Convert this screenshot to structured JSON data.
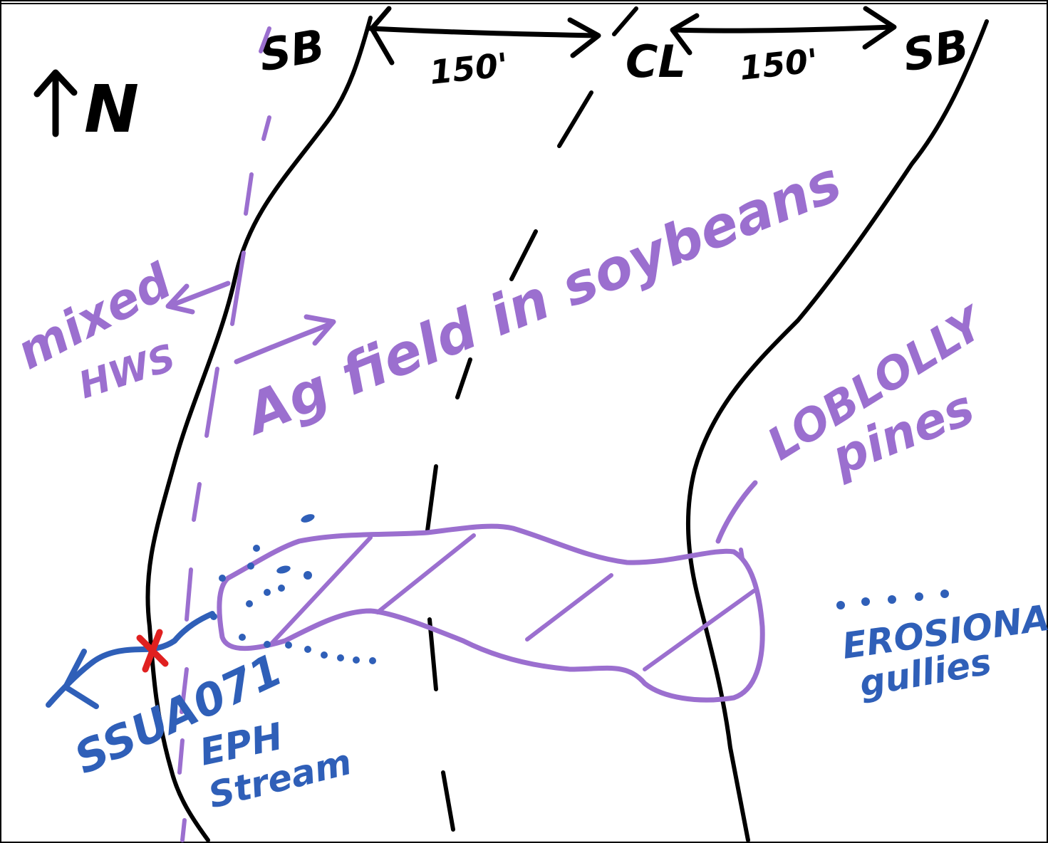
{
  "colors": {
    "black": "#000000",
    "purple": "#9b6fcf",
    "blue": "#2f5fb8",
    "red": "#e02020",
    "paper": "#ffffff"
  },
  "labels": {
    "north": "N",
    "sb_left": "SB",
    "sb_right": "SB",
    "centerline": "CL",
    "width_left": "150'",
    "width_right": "150'",
    "mixed": "mixed",
    "hws": "HWS",
    "ag_field": "Ag field in soybeans",
    "loblolly": "LOBLOLLY",
    "pines": "pines",
    "feature_id": "SSUA071",
    "eph": "EPH",
    "stream": "Stream",
    "erosional": "EROSIONAL",
    "gullies": "gullies"
  },
  "icons": {
    "north_arrow": "north-arrow-icon",
    "stream_point": "red-x-marker-icon"
  }
}
